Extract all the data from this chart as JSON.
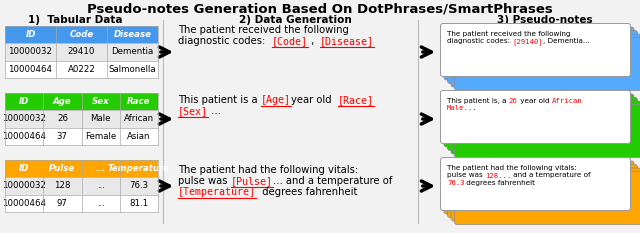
{
  "title": "Pseudo-notes Generation Based On DotPhrases/SmartPhrases",
  "section1_label": "1)  Tabular Data",
  "section2_label": "2) Data Generation",
  "section3_label": "3) Pseudo-notes",
  "table1_header": [
    "ID",
    "Code",
    "Disease"
  ],
  "table1_rows": [
    [
      "10000032",
      "29410",
      "Dementia"
    ],
    [
      "10000464",
      "A0222",
      "Salmonella"
    ]
  ],
  "table1_color": "#4499EE",
  "table2_header": [
    "ID",
    "Age",
    "Sex",
    "Race"
  ],
  "table2_rows": [
    [
      "10000032",
      "26",
      "Male",
      "African"
    ],
    [
      "10000464",
      "37",
      "Female",
      "Asian"
    ]
  ],
  "table2_color": "#22CC00",
  "table3_header": [
    "ID",
    "Pulse",
    "...",
    "Temperature"
  ],
  "table3_rows": [
    [
      "10000032",
      "128",
      "...",
      "76.3"
    ],
    [
      "10000464",
      "97",
      "...",
      "81.1"
    ]
  ],
  "table3_color": "#FFA500",
  "pseudo1_color": "#55AAFF",
  "pseudo2_color": "#22CC00",
  "pseudo3_color": "#FFA500",
  "bg_color": "#F0F0F0",
  "row_bg0": "#E8E8E8",
  "row_bg1": "#FFFFFF"
}
